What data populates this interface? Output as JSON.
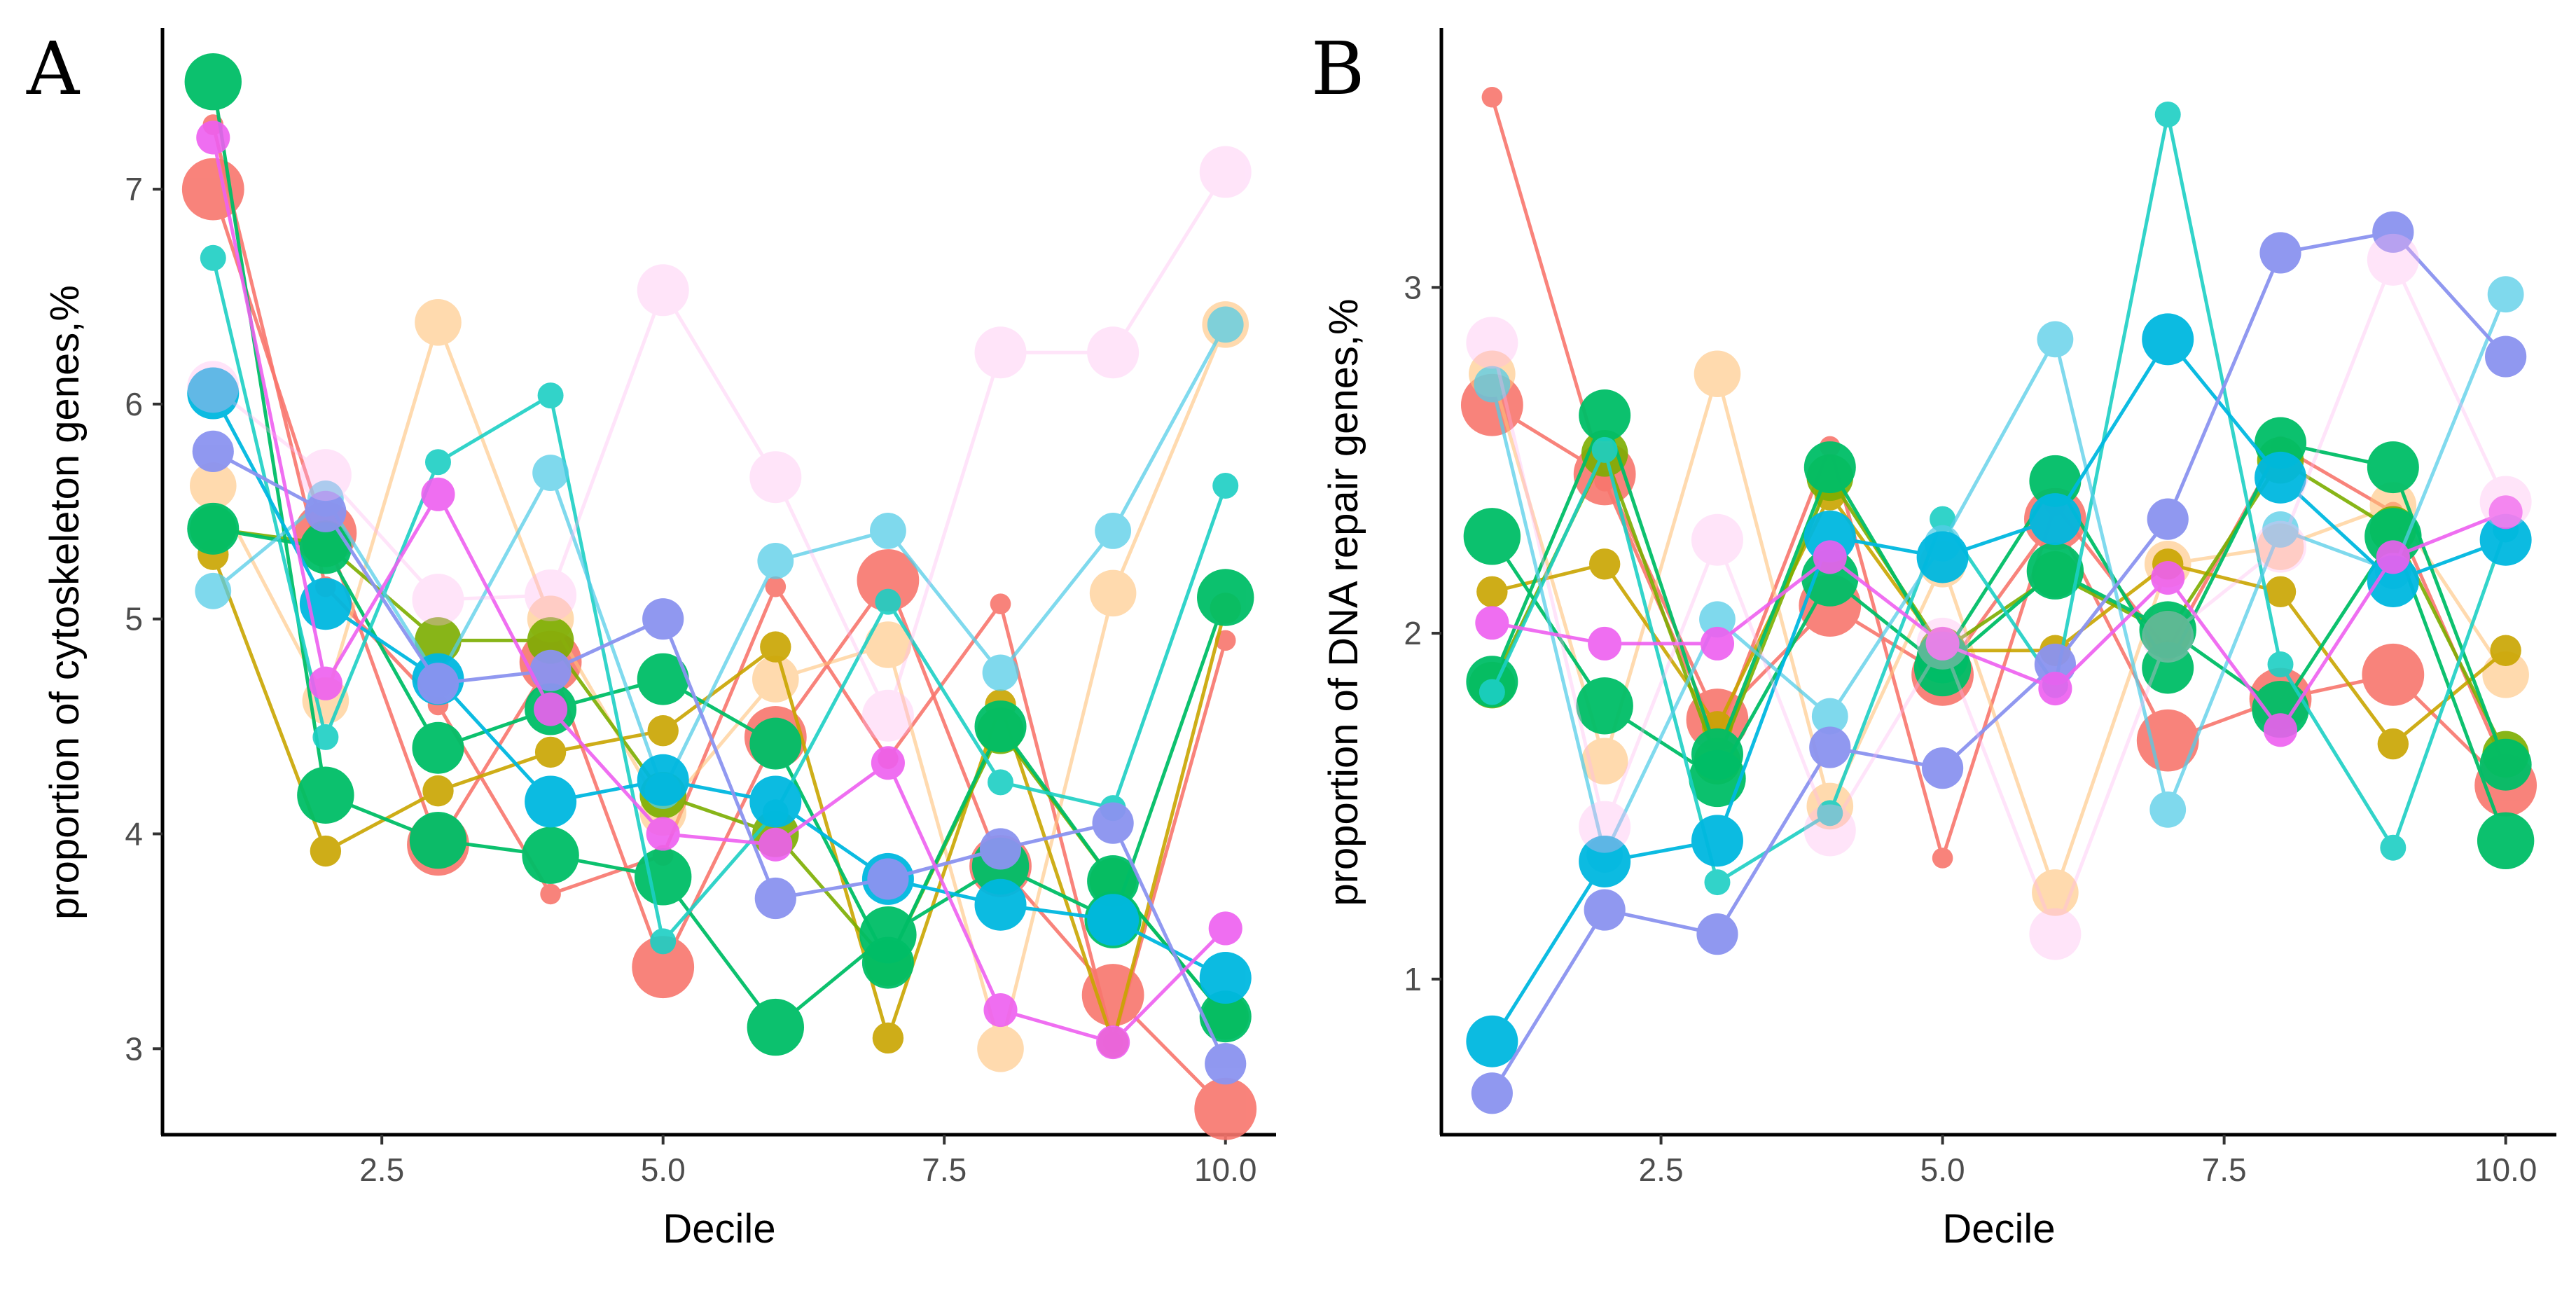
{
  "panels": {
    "a": {
      "letter": "A"
    },
    "b": {
      "letter": "B"
    }
  },
  "chart_data": [
    {
      "type": "line",
      "panel": "A",
      "title": "",
      "xlabel": "Decile",
      "ylabel": "proportion of cytoskeleton genes,%",
      "xlim": [
        0.55,
        10.45
      ],
      "ylim": [
        2.6,
        7.75
      ],
      "xticks": [
        "2.5",
        "5.0",
        "7.5",
        "10.0"
      ],
      "yticks": [
        "3",
        "4",
        "5",
        "6",
        "7"
      ],
      "grid": false,
      "legend": "none",
      "x": [
        1,
        2,
        3,
        4,
        5,
        6,
        7,
        8,
        9,
        10
      ],
      "series": [
        {
          "name": "s1",
          "color": "#f8766d",
          "size": 24,
          "opacity": 0.9,
          "values": [
            7.0,
            5.4,
            3.95,
            4.8,
            3.38,
            4.45,
            5.18,
            3.85,
            3.25,
            2.72
          ]
        },
        {
          "name": "s2",
          "color": "#f8766d",
          "size": 8,
          "opacity": 0.9,
          "values": [
            7.3,
            5.15,
            4.6,
            3.72,
            3.9,
            5.15,
            4.35,
            5.07,
            3.03,
            4.9
          ]
        },
        {
          "name": "s3",
          "color": "#ffc27a",
          "size": 18,
          "opacity": 0.6,
          "values": [
            5.62,
            4.62,
            6.38,
            5.0,
            4.1,
            4.72,
            4.88,
            3.0,
            5.12,
            6.37
          ]
        },
        {
          "name": "s4",
          "color": "#c9a500",
          "size": 12,
          "opacity": 0.9,
          "values": [
            5.3,
            3.92,
            4.2,
            4.38,
            4.48,
            4.87,
            3.05,
            4.6,
            3.03,
            5.05
          ]
        },
        {
          "name": "s5",
          "color": "#7cae00",
          "size": 18,
          "opacity": 0.9,
          "values": [
            5.42,
            5.35,
            4.9,
            4.9,
            4.18,
            4.0,
            3.4,
            4.48,
            3.78,
            3.15
          ]
        },
        {
          "name": "s6",
          "color": "#00be67",
          "size": 22,
          "opacity": 0.95,
          "values": [
            7.5,
            4.18,
            3.97,
            3.9,
            3.8,
            3.1,
            3.53,
            3.85,
            3.6,
            5.1
          ]
        },
        {
          "name": "s7",
          "color": "#00be67",
          "size": 20,
          "opacity": 0.95,
          "values": [
            5.42,
            5.33,
            4.4,
            4.58,
            4.72,
            4.42,
            3.4,
            4.5,
            3.78,
            3.15
          ]
        },
        {
          "name": "s8",
          "color": "#1ccfc4",
          "size": 10,
          "opacity": 0.9,
          "values": [
            6.68,
            4.45,
            5.73,
            6.04,
            3.5,
            4.1,
            5.08,
            4.24,
            4.12,
            5.62
          ]
        },
        {
          "name": "s9",
          "color": "#55cde8",
          "size": 14,
          "opacity": 0.75,
          "values": [
            5.13,
            5.56,
            4.72,
            5.68,
            4.2,
            5.27,
            5.41,
            4.75,
            5.41,
            6.37
          ]
        },
        {
          "name": "s10",
          "color": "#00b8e0",
          "size": 20,
          "opacity": 0.95,
          "values": [
            6.05,
            5.07,
            4.72,
            4.15,
            4.25,
            4.15,
            3.79,
            3.67,
            3.6,
            3.33
          ]
        },
        {
          "name": "s11",
          "color": "#8b93f0",
          "size": 16,
          "opacity": 0.95,
          "values": [
            5.78,
            5.5,
            4.7,
            4.76,
            5.0,
            3.7,
            3.79,
            3.93,
            4.05,
            2.93
          ]
        },
        {
          "name": "s12",
          "color": "#ee5ff0",
          "size": 13,
          "opacity": 0.9,
          "values": [
            7.24,
            4.7,
            5.58,
            4.58,
            4.0,
            3.95,
            4.33,
            3.18,
            3.03,
            3.56
          ]
        },
        {
          "name": "s13",
          "color": "#ffb3f0",
          "size": 20,
          "opacity": 0.35,
          "values": [
            6.08,
            5.67,
            5.09,
            5.11,
            6.53,
            5.66,
            4.55,
            6.24,
            6.24,
            7.08
          ]
        }
      ]
    },
    {
      "type": "line",
      "panel": "B",
      "title": "",
      "xlabel": "Decile",
      "ylabel": "proportion of DNA repair genes,%",
      "xlim": [
        0.55,
        10.45
      ],
      "ylim": [
        0.55,
        3.75
      ],
      "xticks": [
        "2.5",
        "5.0",
        "7.5",
        "10.0"
      ],
      "yticks": [
        "1",
        "2",
        "3"
      ],
      "grid": false,
      "legend": "none",
      "x": [
        1,
        2,
        3,
        4,
        5,
        6,
        7,
        8,
        9,
        10
      ],
      "series": [
        {
          "name": "s1",
          "color": "#f8766d",
          "size": 24,
          "opacity": 0.9,
          "values": [
            2.66,
            2.46,
            1.75,
            2.08,
            1.88,
            2.33,
            1.69,
            1.81,
            1.88,
            1.56
          ]
        },
        {
          "name": "s2",
          "color": "#f8766d",
          "size": 8,
          "opacity": 0.9,
          "values": [
            3.55,
            2.44,
            1.7,
            2.54,
            1.35,
            2.37,
            1.95,
            2.54,
            2.35,
            1.61
          ]
        },
        {
          "name": "s3",
          "color": "#ffc27a",
          "size": 18,
          "opacity": 0.6,
          "values": [
            2.75,
            1.63,
            2.75,
            1.5,
            2.2,
            1.25,
            2.2,
            2.25,
            2.37,
            1.88
          ]
        },
        {
          "name": "s4",
          "color": "#c9a500",
          "size": 12,
          "opacity": 0.9,
          "values": [
            2.12,
            2.2,
            1.73,
            2.4,
            1.95,
            1.95,
            2.2,
            2.12,
            1.68,
            1.95
          ]
        },
        {
          "name": "s5",
          "color": "#7cae00",
          "size": 18,
          "opacity": 0.9,
          "values": [
            1.85,
            2.52,
            1.63,
            2.45,
            1.95,
            2.17,
            2.0,
            2.5,
            2.3,
            1.65
          ]
        },
        {
          "name": "s6",
          "color": "#00be67",
          "size": 22,
          "opacity": 0.95,
          "values": [
            2.28,
            1.79,
            1.58,
            2.16,
            1.9,
            2.18,
            2.01,
            1.78,
            2.28,
            1.4
          ]
        },
        {
          "name": "s7",
          "color": "#00be67",
          "size": 20,
          "opacity": 0.95,
          "values": [
            1.86,
            2.63,
            1.65,
            2.48,
            1.93,
            2.44,
            1.9,
            2.55,
            2.48,
            1.62
          ]
        },
        {
          "name": "s8",
          "color": "#1ccfc4",
          "size": 10,
          "opacity": 0.9,
          "values": [
            1.83,
            2.53,
            1.28,
            1.48,
            2.33,
            1.85,
            3.5,
            1.91,
            1.38,
            2.3
          ]
        },
        {
          "name": "s9",
          "color": "#55cde8",
          "size": 14,
          "opacity": 0.75,
          "values": [
            2.72,
            1.36,
            2.04,
            1.76,
            2.26,
            2.85,
            1.49,
            2.3,
            2.18,
            2.98
          ]
        },
        {
          "name": "s10",
          "color": "#00b8e0",
          "size": 20,
          "opacity": 0.95,
          "values": [
            0.82,
            1.34,
            1.4,
            2.28,
            2.22,
            2.33,
            2.85,
            2.45,
            2.15,
            2.27
          ]
        },
        {
          "name": "s11",
          "color": "#8b93f0",
          "size": 16,
          "opacity": 0.95,
          "values": [
            0.67,
            1.2,
            1.13,
            1.67,
            1.61,
            1.91,
            2.33,
            3.1,
            3.16,
            2.8
          ]
        },
        {
          "name": "s12",
          "color": "#ee5ff0",
          "size": 13,
          "opacity": 0.9,
          "values": [
            2.03,
            1.97,
            1.97,
            2.22,
            1.97,
            1.84,
            2.16,
            1.72,
            2.22,
            2.35
          ]
        },
        {
          "name": "s13",
          "color": "#ffb3f0",
          "size": 20,
          "opacity": 0.35,
          "values": [
            2.84,
            1.44,
            2.27,
            1.43,
            1.97,
            1.13,
            1.99,
            2.25,
            3.08,
            2.38
          ]
        }
      ]
    }
  ]
}
